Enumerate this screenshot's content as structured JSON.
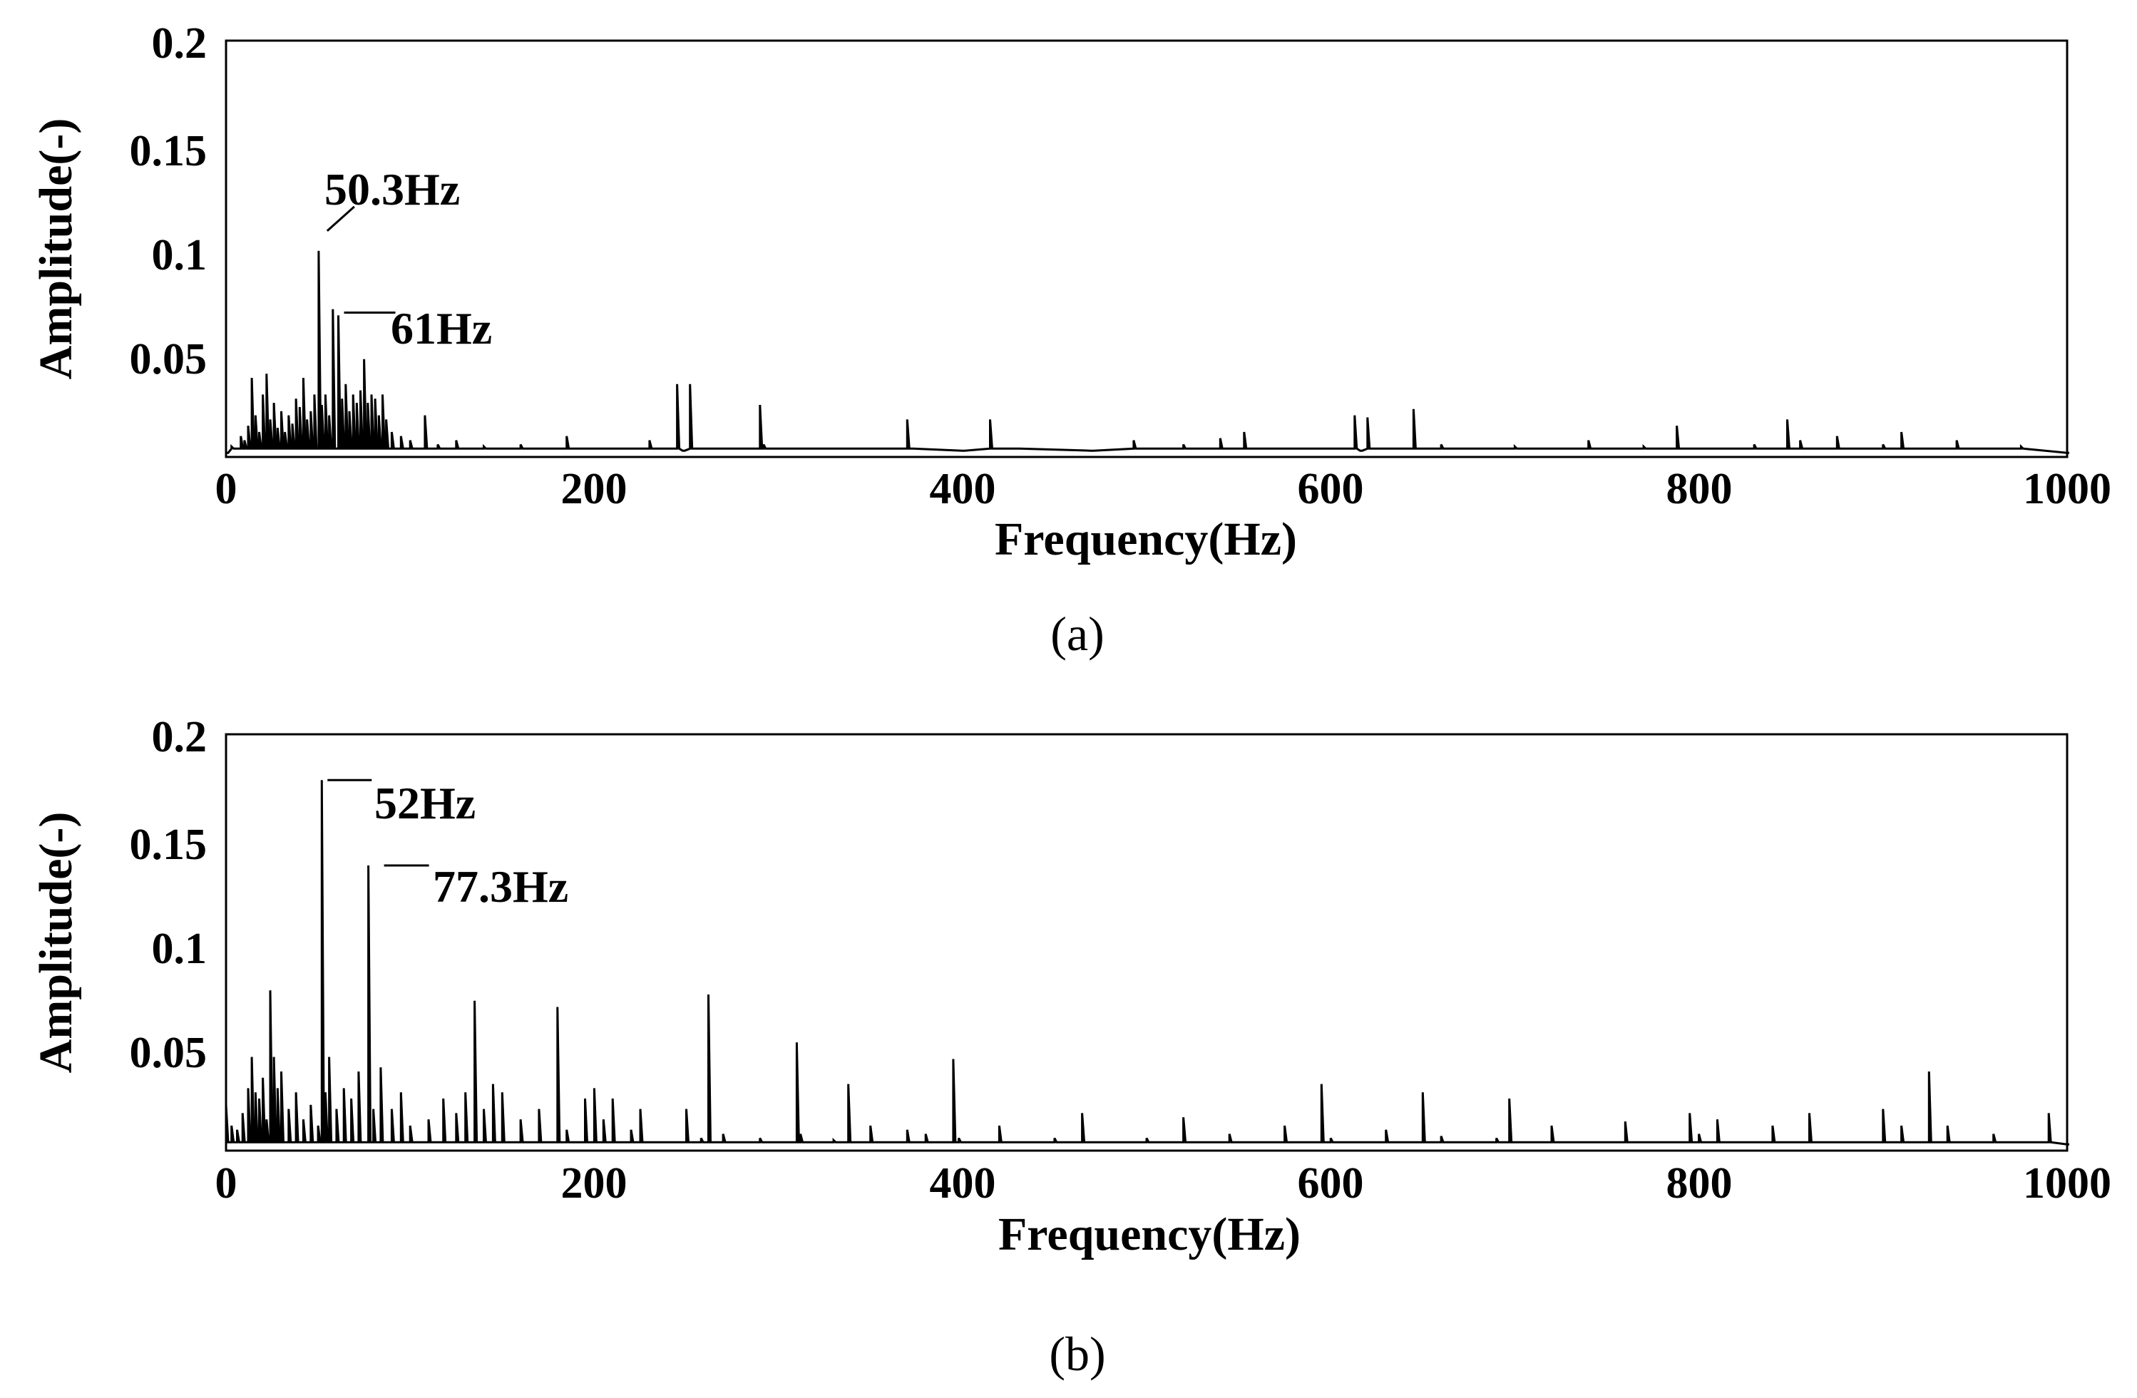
{
  "chart_data": [
    {
      "type": "line",
      "panel_label": "(a)",
      "title": "",
      "xlabel": "Frequency(Hz)",
      "ylabel": "Amplitude(-)",
      "xlim": [
        0,
        1000
      ],
      "ylim": [
        0,
        0.2
      ],
      "x_ticks": [
        "0",
        "200",
        "400",
        "600",
        "800",
        "1000"
      ],
      "y_ticks": [
        "0.05",
        "0.1",
        "0.15",
        "0.2"
      ],
      "grid": false,
      "series": [
        {
          "x": [
            0,
            3,
            6,
            8,
            10,
            12,
            14,
            16,
            18,
            20,
            22,
            24,
            26,
            28,
            30,
            32,
            34,
            36,
            38,
            40,
            42,
            44,
            46,
            48,
            50.3,
            52,
            54,
            56,
            58,
            61,
            63,
            65,
            67,
            69,
            71,
            73,
            75,
            77,
            79,
            81,
            83,
            85,
            87,
            90,
            95,
            100,
            108,
            115,
            125,
            140,
            160,
            185,
            210,
            230,
            245,
            248,
            252,
            270,
            290,
            292,
            310,
            350,
            370,
            372,
            400,
            415,
            430,
            470,
            493,
            520,
            540,
            553,
            580,
            613,
            616,
            620,
            645,
            660,
            700,
            740,
            770,
            788,
            800,
            830,
            848,
            855,
            875,
            900,
            910,
            940,
            975,
            1000
          ],
          "y": [
            0.002,
            0.005,
            0.004,
            0.01,
            0.008,
            0.015,
            0.038,
            0.02,
            0.012,
            0.03,
            0.04,
            0.018,
            0.026,
            0.014,
            0.022,
            0.012,
            0.02,
            0.016,
            0.028,
            0.024,
            0.038,
            0.018,
            0.022,
            0.03,
            0.099,
            0.025,
            0.03,
            0.02,
            0.071,
            0.068,
            0.028,
            0.035,
            0.022,
            0.03,
            0.026,
            0.032,
            0.047,
            0.026,
            0.03,
            0.028,
            0.02,
            0.03,
            0.018,
            0.012,
            0.01,
            0.008,
            0.02,
            0.006,
            0.008,
            0.005,
            0.006,
            0.01,
            0.004,
            0.008,
            0.035,
            0.003,
            0.035,
            0.004,
            0.025,
            0.006,
            0.004,
            0.004,
            0.018,
            0.004,
            0.003,
            0.018,
            0.004,
            0.003,
            0.008,
            0.006,
            0.009,
            0.012,
            0.004,
            0.02,
            0.003,
            0.019,
            0.023,
            0.006,
            0.005,
            0.008,
            0.005,
            0.015,
            0.004,
            0.006,
            0.018,
            0.008,
            0.01,
            0.006,
            0.012,
            0.008,
            0.005,
            0.002
          ]
        }
      ],
      "annotations": [
        {
          "text": "50.3Hz",
          "x": 50.3,
          "y": 0.099
        },
        {
          "text": "61Hz",
          "x": 61,
          "y": 0.068
        }
      ]
    },
    {
      "type": "line",
      "panel_label": "(b)",
      "title": "",
      "xlabel": "Frequency(Hz)",
      "ylabel": "Amplitude(-)",
      "xlim": [
        0,
        1000
      ],
      "ylim": [
        0,
        0.2
      ],
      "x_ticks": [
        "0",
        "200",
        "400",
        "600",
        "800",
        "1000"
      ],
      "y_ticks": [
        "0.05",
        "0.1",
        "0.15",
        "0.2"
      ],
      "grid": false,
      "series": [
        {
          "x": [
            0,
            3,
            6,
            9,
            12,
            14,
            16,
            18,
            20,
            22,
            24,
            26,
            28,
            30,
            34,
            38,
            42,
            46,
            50,
            52,
            54,
            56,
            60,
            64,
            68,
            72,
            77.3,
            80,
            84,
            90,
            95,
            100,
            110,
            118,
            125,
            130,
            135,
            140,
            145,
            150,
            160,
            170,
            180,
            185,
            195,
            200,
            205,
            210,
            220,
            225,
            250,
            258,
            262,
            270,
            290,
            310,
            312,
            330,
            338,
            350,
            370,
            380,
            395,
            398,
            420,
            450,
            465,
            500,
            520,
            545,
            575,
            595,
            600,
            630,
            650,
            660,
            690,
            697,
            720,
            760,
            795,
            800,
            810,
            840,
            860,
            900,
            910,
            925,
            935,
            960,
            985,
            990,
            1000
          ],
          "y": [
            0.022,
            0.012,
            0.01,
            0.018,
            0.03,
            0.045,
            0.028,
            0.025,
            0.035,
            0.015,
            0.077,
            0.045,
            0.03,
            0.038,
            0.02,
            0.028,
            0.015,
            0.022,
            0.012,
            0.178,
            0.028,
            0.045,
            0.02,
            0.03,
            0.025,
            0.038,
            0.137,
            0.02,
            0.04,
            0.02,
            0.028,
            0.012,
            0.015,
            0.025,
            0.018,
            0.028,
            0.072,
            0.02,
            0.032,
            0.028,
            0.015,
            0.02,
            0.069,
            0.01,
            0.025,
            0.03,
            0.015,
            0.025,
            0.01,
            0.02,
            0.02,
            0.006,
            0.075,
            0.008,
            0.006,
            0.052,
            0.008,
            0.005,
            0.032,
            0.012,
            0.01,
            0.008,
            0.044,
            0.006,
            0.012,
            0.006,
            0.018,
            0.006,
            0.016,
            0.008,
            0.012,
            0.032,
            0.006,
            0.01,
            0.028,
            0.007,
            0.006,
            0.025,
            0.012,
            0.014,
            0.018,
            0.008,
            0.015,
            0.012,
            0.018,
            0.02,
            0.012,
            0.038,
            0.012,
            0.008,
            0.004,
            0.018,
            0.003
          ]
        }
      ],
      "annotations": [
        {
          "text": "52Hz",
          "x": 52,
          "y": 0.178
        },
        {
          "text": "77.3Hz",
          "x": 77.3,
          "y": 0.137
        }
      ]
    }
  ]
}
